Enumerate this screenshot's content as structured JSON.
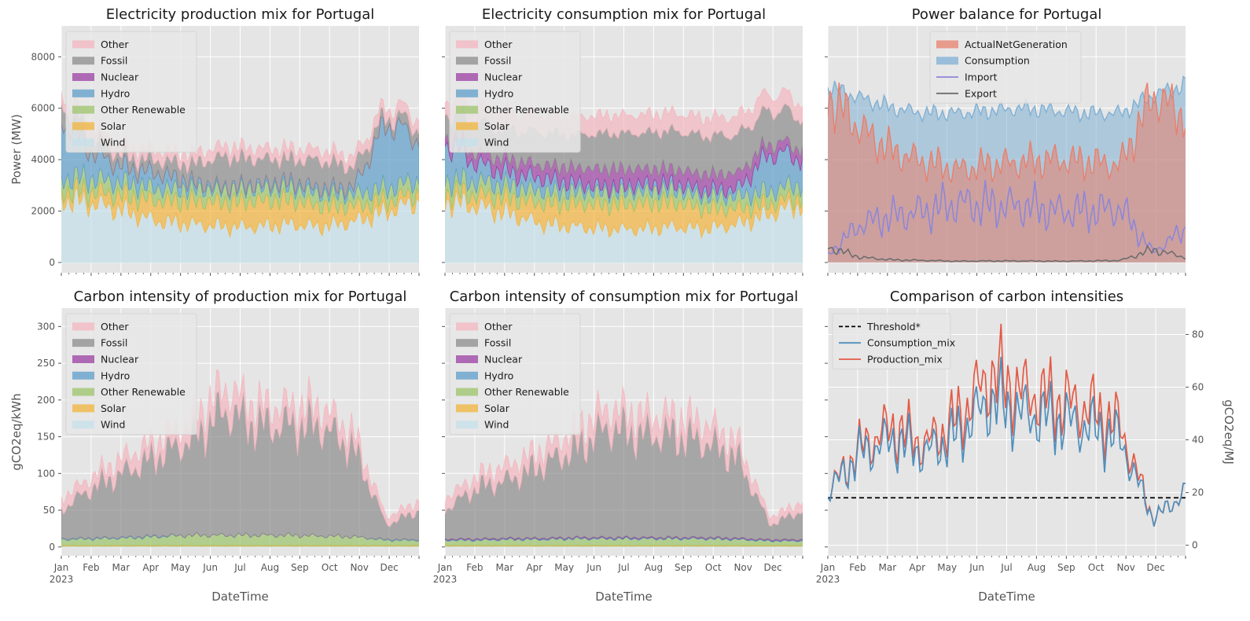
{
  "colors": {
    "Other": "#f4b6bf",
    "Fossil": "#8c8c8c",
    "Nuclear": "#9b3fa3",
    "Hydro": "#5d9ec9",
    "Other Renewable": "#9cc46a",
    "Solar": "#f2b43c",
    "Wind": "#c5e0ea",
    "ActualNetGeneration": "#e8806c",
    "Consumption": "#80b0d4",
    "Import": "#8e86d8",
    "Export": "#6e6e6e",
    "Threshold*": "#000000",
    "Consumption_mix": "#4f8fbd",
    "Production_mix": "#e45a45"
  },
  "chart_data": [
    {
      "id": "prod-mix",
      "type": "area",
      "title": "Electricity production mix for Portugal",
      "ylabel": "Power (MW)",
      "xlabel": "",
      "ylim": [
        -400,
        9200
      ],
      "yticks": [
        0,
        2000,
        4000,
        6000,
        8000
      ],
      "x": [
        "Jan",
        "Feb",
        "Mar",
        "Apr",
        "May",
        "Jun",
        "Jul",
        "Aug",
        "Sep",
        "Oct",
        "Nov",
        "Dec"
      ],
      "legend": {
        "position": "upper-left",
        "entries": [
          "Other",
          "Fossil",
          "Nuclear",
          "Hydro",
          "Other Renewable",
          "Solar",
          "Wind"
        ]
      },
      "series": [
        {
          "name": "Wind",
          "values": [
            2500,
            2300,
            2000,
            1600,
            1500,
            1400,
            1400,
            1500,
            1400,
            1600,
            2000,
            2400
          ]
        },
        {
          "name": "Solar",
          "values": [
            300,
            450,
            600,
            800,
            900,
            950,
            1000,
            950,
            800,
            600,
            400,
            300
          ]
        },
        {
          "name": "Other Renewable",
          "values": [
            500,
            500,
            480,
            470,
            470,
            470,
            480,
            480,
            470,
            470,
            480,
            500
          ]
        },
        {
          "name": "Hydro",
          "values": [
            2300,
            1000,
            600,
            600,
            250,
            100,
            150,
            200,
            200,
            250,
            2600,
            1600
          ]
        },
        {
          "name": "Nuclear",
          "values": [
            0,
            0,
            0,
            0,
            0,
            0,
            0,
            0,
            0,
            0,
            0,
            0
          ]
        },
        {
          "name": "Fossil",
          "values": [
            700,
            600,
            400,
            500,
            700,
            1200,
            1000,
            900,
            1100,
            800,
            300,
            500
          ]
        },
        {
          "name": "Other",
          "values": [
            400,
            400,
            400,
            400,
            400,
            400,
            400,
            400,
            400,
            400,
            400,
            400
          ]
        }
      ]
    },
    {
      "id": "cons-mix",
      "type": "area",
      "title": "Electricity consumption mix for Portugal",
      "ylabel": "",
      "xlabel": "",
      "ylim": [
        -400,
        9200
      ],
      "x": [
        "Jan",
        "Feb",
        "Mar",
        "Apr",
        "May",
        "Jun",
        "Jul",
        "Aug",
        "Sep",
        "Oct",
        "Nov",
        "Dec"
      ],
      "legend": {
        "position": "upper-left",
        "entries": [
          "Other",
          "Fossil",
          "Nuclear",
          "Hydro",
          "Other Renewable",
          "Solar",
          "Wind"
        ]
      },
      "series": [
        {
          "name": "Wind",
          "values": [
            2400,
            2200,
            1900,
            1500,
            1400,
            1300,
            1300,
            1400,
            1300,
            1500,
            1900,
            2300
          ]
        },
        {
          "name": "Solar",
          "values": [
            300,
            450,
            600,
            800,
            900,
            950,
            1000,
            950,
            800,
            600,
            400,
            300
          ]
        },
        {
          "name": "Other Renewable",
          "values": [
            500,
            500,
            480,
            470,
            470,
            470,
            480,
            480,
            470,
            470,
            480,
            500
          ]
        },
        {
          "name": "Hydro",
          "values": [
            1500,
            700,
            500,
            500,
            300,
            200,
            250,
            250,
            250,
            300,
            1500,
            1000
          ]
        },
        {
          "name": "Nuclear",
          "values": [
            300,
            400,
            500,
            500,
            600,
            700,
            600,
            550,
            600,
            600,
            400,
            400
          ]
        },
        {
          "name": "Fossil",
          "values": [
            900,
            1200,
            1200,
            1300,
            1300,
            1400,
            1400,
            1500,
            1500,
            1500,
            1300,
            1200
          ]
        },
        {
          "name": "Other",
          "values": [
            600,
            600,
            650,
            700,
            700,
            700,
            700,
            700,
            700,
            700,
            650,
            600
          ]
        }
      ]
    },
    {
      "id": "balance",
      "type": "area",
      "title": "Power balance for Portugal",
      "ylabel": "",
      "xlabel": "",
      "ylim": [
        -400,
        9200
      ],
      "x": [
        "Jan",
        "Feb",
        "Mar",
        "Apr",
        "May",
        "Jun",
        "Jul",
        "Aug",
        "Sep",
        "Oct",
        "Nov",
        "Dec"
      ],
      "legend": {
        "position": "upper-center",
        "entries": [
          "ActualNetGeneration",
          "Consumption",
          "Import",
          "Export"
        ]
      },
      "series": [
        {
          "name": "ActualNetGeneration",
          "kind": "area",
          "values": [
            6500,
            5200,
            4300,
            3900,
            3600,
            3800,
            3900,
            4000,
            3900,
            3800,
            6500,
            5700
          ]
        },
        {
          "name": "Consumption",
          "kind": "area",
          "values": [
            6800,
            6400,
            6000,
            5800,
            5800,
            5900,
            6000,
            5900,
            5800,
            5800,
            6500,
            6900
          ]
        },
        {
          "name": "Import",
          "kind": "line",
          "values": [
            300,
            1500,
            1800,
            2000,
            2300,
            2200,
            2200,
            2000,
            2000,
            2100,
            400,
            1300
          ]
        },
        {
          "name": "Export",
          "kind": "line",
          "values": [
            600,
            200,
            100,
            80,
            50,
            60,
            60,
            50,
            60,
            80,
            500,
            200
          ]
        }
      ]
    },
    {
      "id": "ci-prod",
      "type": "area",
      "title": "Carbon intensity of production mix for Portugal",
      "ylabel": "gCO2eq/kWh",
      "xlabel": "DateTime",
      "ylim": [
        -12,
        325
      ],
      "yticks": [
        0,
        50,
        100,
        150,
        200,
        250,
        300
      ],
      "x": [
        "Jan",
        "Feb",
        "Mar",
        "Apr",
        "May",
        "Jun",
        "Jul",
        "Aug",
        "Sep",
        "Oct",
        "Nov",
        "Dec"
      ],
      "xticklabels": [
        "Jan\n2023",
        "Feb",
        "Mar",
        "Apr",
        "May",
        "Jun",
        "Jul",
        "Aug",
        "Sep",
        "Oct",
        "Nov",
        "Dec"
      ],
      "legend": {
        "position": "upper-left",
        "entries": [
          "Other",
          "Fossil",
          "Nuclear",
          "Hydro",
          "Other Renewable",
          "Solar",
          "Wind"
        ]
      },
      "series": [
        {
          "name": "Wind",
          "values": [
            1,
            1,
            1,
            1,
            1,
            1,
            1,
            1,
            1,
            1,
            1,
            1
          ]
        },
        {
          "name": "Solar",
          "values": [
            1,
            1,
            1,
            1,
            1,
            1,
            1,
            1,
            1,
            1,
            1,
            1
          ]
        },
        {
          "name": "Other Renewable",
          "values": [
            8,
            9,
            10,
            12,
            14,
            14,
            14,
            14,
            13,
            12,
            7,
            7
          ]
        },
        {
          "name": "Hydro",
          "values": [
            1,
            1,
            1,
            1,
            0,
            0,
            0,
            0,
            0,
            0,
            1,
            1
          ]
        },
        {
          "name": "Nuclear",
          "values": [
            0,
            0,
            0,
            0,
            0,
            0,
            0,
            0,
            0,
            0,
            0,
            0
          ]
        },
        {
          "name": "Fossil",
          "values": [
            40,
            70,
            90,
            110,
            130,
            170,
            150,
            150,
            150,
            120,
            20,
            40
          ]
        },
        {
          "name": "Other",
          "values": [
            15,
            15,
            20,
            20,
            25,
            30,
            25,
            25,
            25,
            20,
            10,
            12
          ]
        }
      ]
    },
    {
      "id": "ci-cons",
      "type": "area",
      "title": "Carbon intensity of consumption mix for Portugal",
      "ylabel": "",
      "xlabel": "DateTime",
      "ylim": [
        -12,
        325
      ],
      "x": [
        "Jan",
        "Feb",
        "Mar",
        "Apr",
        "May",
        "Jun",
        "Jul",
        "Aug",
        "Sep",
        "Oct",
        "Nov",
        "Dec"
      ],
      "xticklabels": [
        "Jan\n2023",
        "Feb",
        "Mar",
        "Apr",
        "May",
        "Jun",
        "Jul",
        "Aug",
        "Sep",
        "Oct",
        "Nov",
        "Dec"
      ],
      "legend": {
        "position": "upper-left",
        "entries": [
          "Other",
          "Fossil",
          "Nuclear",
          "Hydro",
          "Other Renewable",
          "Solar",
          "Wind"
        ]
      },
      "series": [
        {
          "name": "Wind",
          "values": [
            1,
            1,
            1,
            1,
            1,
            1,
            1,
            1,
            1,
            1,
            1,
            1
          ]
        },
        {
          "name": "Solar",
          "values": [
            1,
            1,
            1,
            1,
            1,
            1,
            1,
            1,
            1,
            1,
            1,
            1
          ]
        },
        {
          "name": "Other Renewable",
          "values": [
            7,
            7,
            8,
            8,
            9,
            9,
            9,
            9,
            9,
            8,
            6,
            6
          ]
        },
        {
          "name": "Hydro",
          "values": [
            1,
            1,
            1,
            1,
            1,
            1,
            1,
            1,
            1,
            1,
            1,
            1
          ]
        },
        {
          "name": "Nuclear",
          "values": [
            1,
            1,
            1,
            1,
            1,
            1,
            1,
            1,
            1,
            1,
            1,
            1
          ]
        },
        {
          "name": "Fossil",
          "values": [
            40,
            70,
            80,
            100,
            120,
            150,
            140,
            140,
            130,
            110,
            20,
            40
          ]
        },
        {
          "name": "Other",
          "values": [
            15,
            15,
            20,
            20,
            25,
            25,
            25,
            25,
            25,
            20,
            10,
            12
          ]
        }
      ]
    },
    {
      "id": "compare",
      "type": "line",
      "title": "Comparison of carbon intensities",
      "ylabel": "gCO2eq/MJ",
      "ylabel_side": "right",
      "xlabel": "DateTime",
      "ylim": [
        -4,
        90
      ],
      "yticks": [
        0,
        20,
        40,
        60,
        80
      ],
      "x": [
        "Jan",
        "Feb",
        "Mar",
        "Apr",
        "May",
        "Jun",
        "Jul",
        "Aug",
        "Sep",
        "Oct",
        "Nov",
        "Dec"
      ],
      "xticklabels": [
        "Jan\n2023",
        "Feb",
        "Mar",
        "Apr",
        "May",
        "Jun",
        "Jul",
        "Aug",
        "Sep",
        "Oct",
        "Nov",
        "Dec"
      ],
      "legend": {
        "position": "upper-left",
        "entries": [
          "Threshold*",
          "Consumption_mix",
          "Production_mix"
        ]
      },
      "series": [
        {
          "name": "Threshold*",
          "kind": "dashed",
          "values": [
            18,
            18,
            18,
            18,
            18,
            18,
            18,
            18,
            18,
            18,
            18,
            18
          ]
        },
        {
          "name": "Consumption_mix",
          "kind": "line",
          "values": [
            20,
            35,
            40,
            35,
            42,
            55,
            50,
            48,
            45,
            40,
            10,
            20
          ]
        },
        {
          "name": "Production_mix",
          "kind": "line",
          "values": [
            20,
            37,
            45,
            38,
            48,
            65,
            58,
            55,
            52,
            45,
            10,
            20
          ]
        }
      ]
    }
  ]
}
